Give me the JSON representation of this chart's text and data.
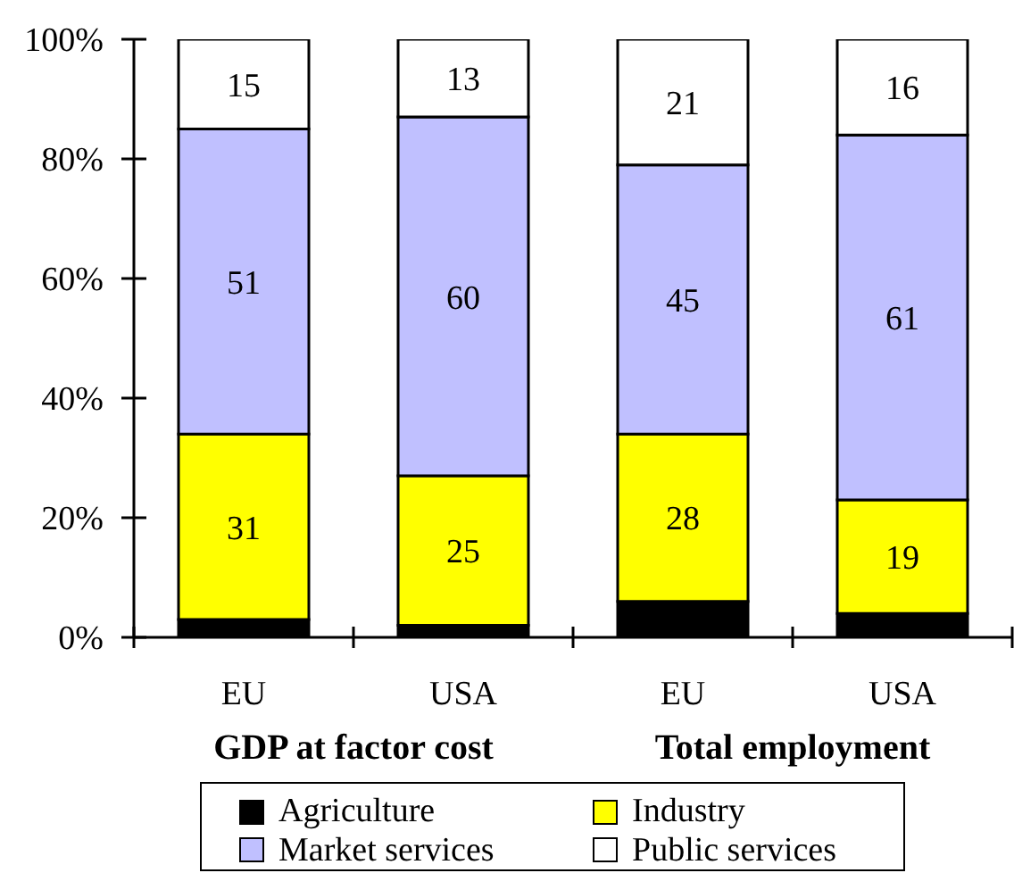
{
  "chart_data": {
    "type": "bar",
    "stacked": true,
    "categories": [
      "EU",
      "USA",
      "EU",
      "USA"
    ],
    "series": [
      {
        "name": "Agriculture",
        "color": "#000000",
        "values": [
          3,
          2,
          6,
          4
        ]
      },
      {
        "name": "Industry",
        "color": "#ffff00",
        "values": [
          31,
          25,
          28,
          19
        ],
        "value_labels": [
          "31",
          "25",
          "28",
          "19"
        ]
      },
      {
        "name": "Market services",
        "color": "#c0c0ff",
        "values": [
          51,
          60,
          45,
          61
        ],
        "value_labels": [
          "51",
          "60",
          "45",
          "61"
        ]
      },
      {
        "name": "Public services",
        "color": "#ffffff",
        "values": [
          15,
          13,
          21,
          16
        ],
        "value_labels": [
          "15",
          "13",
          "21",
          "16"
        ]
      }
    ],
    "ylim": [
      0,
      100
    ],
    "yticks": [
      {
        "value": 0,
        "label": "0%"
      },
      {
        "value": 20,
        "label": "20%"
      },
      {
        "value": 40,
        "label": "40%"
      },
      {
        "value": 60,
        "label": "60%"
      },
      {
        "value": 80,
        "label": "80%"
      },
      {
        "value": 100,
        "label": "100%"
      }
    ],
    "legend": "bottom",
    "annotations": [
      "GDP at factor cost",
      "Total employment"
    ]
  }
}
